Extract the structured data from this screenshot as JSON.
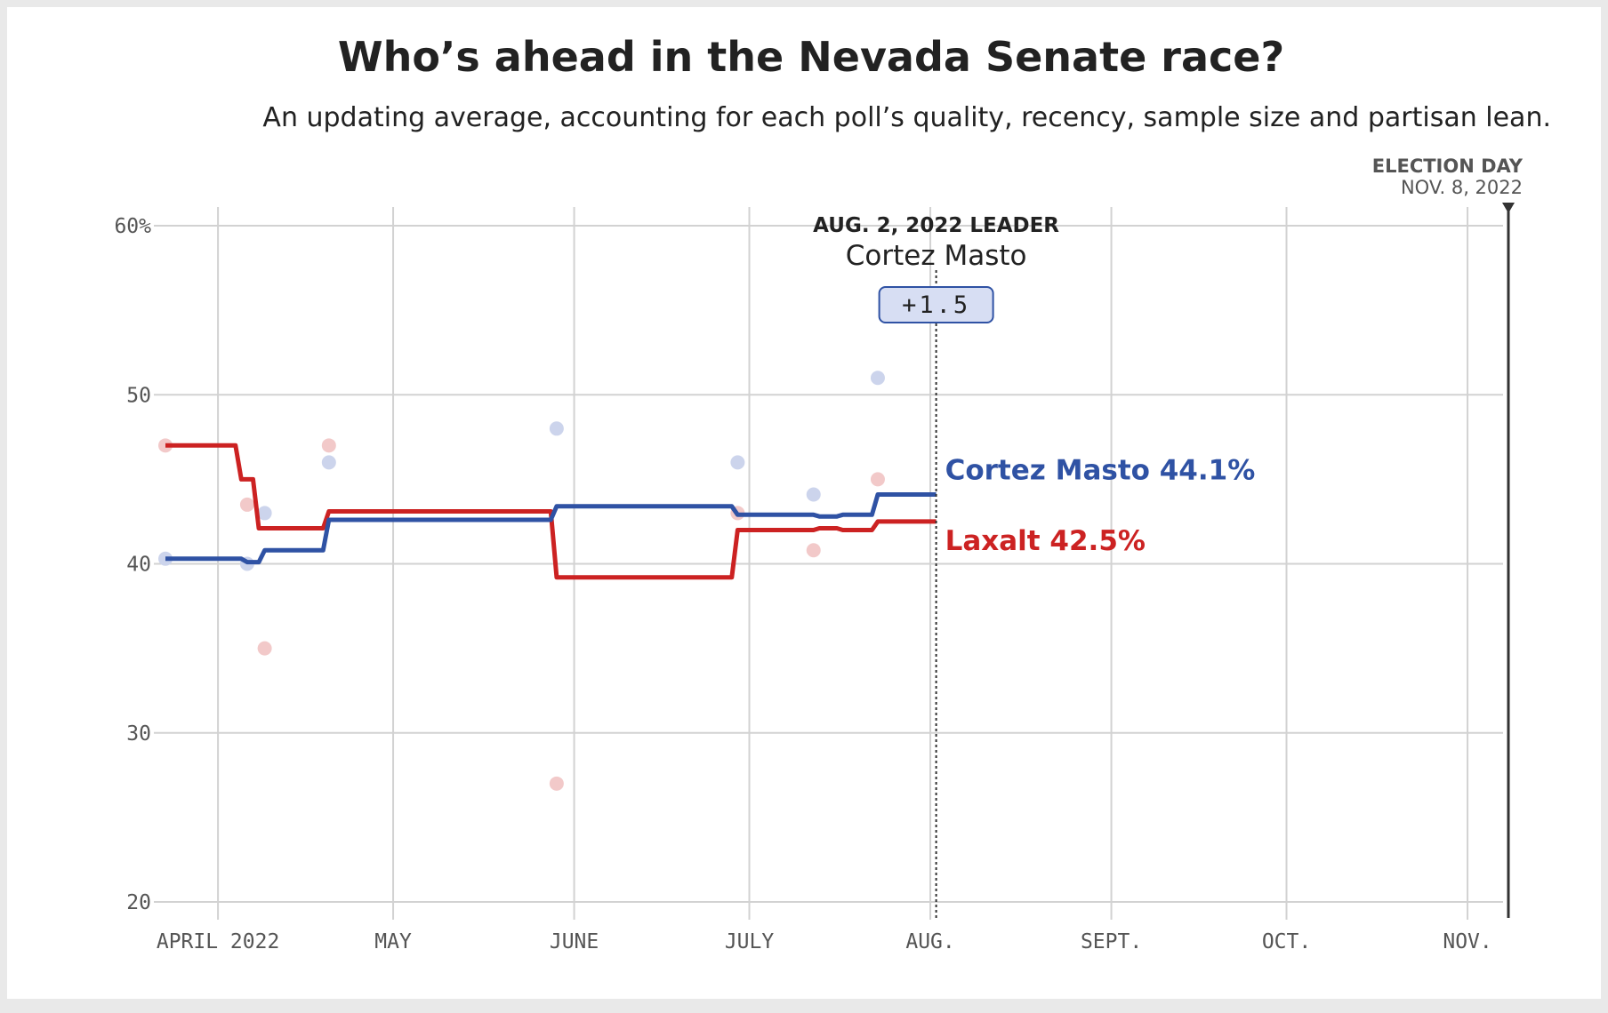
{
  "chart_data": {
    "type": "line",
    "title": "Who’s ahead in the Nevada Senate race?",
    "subtitle": "An updating average, accounting for each poll’s quality, recency, sample size and partisan lean.",
    "y_ticks": [
      "60%",
      "50",
      "40",
      "30",
      "20"
    ],
    "ylim": [
      20,
      60
    ],
    "xlim": [
      "2022-03-23",
      "2022-11-08"
    ],
    "x_ticks": [
      {
        "label": "APRIL 2022",
        "date": "2022-04-01"
      },
      {
        "label": "MAY",
        "date": "2022-05-01"
      },
      {
        "label": "JUNE",
        "date": "2022-06-01"
      },
      {
        "label": "JULY",
        "date": "2022-07-01"
      },
      {
        "label": "AUG.",
        "date": "2022-08-01"
      },
      {
        "label": "SEPT.",
        "date": "2022-09-01"
      },
      {
        "label": "OCT.",
        "date": "2022-10-01"
      },
      {
        "label": "NOV.",
        "date": "2022-11-01"
      }
    ],
    "grid": true,
    "election_day": {
      "label": "ELECTION DAY",
      "date_label": "NOV. 8, 2022",
      "date": "2022-11-08"
    },
    "leader_callout": {
      "heading": "AUG. 2, 2022 LEADER",
      "name": "Cortez Masto",
      "margin": "+1.5",
      "date": "2022-08-02"
    },
    "series": [
      {
        "name": "Cortez Masto",
        "end_label": "Cortez Masto 44.1%",
        "color": "#2f52a4",
        "points": [
          [
            "2022-03-23",
            40.3
          ],
          [
            "2022-04-05",
            40.3
          ],
          [
            "2022-04-06",
            40.1
          ],
          [
            "2022-04-08",
            40.1
          ],
          [
            "2022-04-09",
            40.8
          ],
          [
            "2022-04-19",
            40.8
          ],
          [
            "2022-04-20",
            42.6
          ],
          [
            "2022-05-28",
            42.6
          ],
          [
            "2022-05-29",
            43.4
          ],
          [
            "2022-06-28",
            43.4
          ],
          [
            "2022-06-29",
            42.9
          ],
          [
            "2022-07-12",
            42.9
          ],
          [
            "2022-07-13",
            42.8
          ],
          [
            "2022-07-16",
            42.8
          ],
          [
            "2022-07-17",
            42.9
          ],
          [
            "2022-07-22",
            42.9
          ],
          [
            "2022-07-23",
            44.1
          ],
          [
            "2022-08-02",
            44.1
          ]
        ]
      },
      {
        "name": "Laxalt",
        "end_label": "Laxalt 42.5%",
        "color": "#cc2222",
        "points": [
          [
            "2022-03-23",
            47.0
          ],
          [
            "2022-04-04",
            47.0
          ],
          [
            "2022-04-05",
            45.0
          ],
          [
            "2022-04-07",
            45.0
          ],
          [
            "2022-04-08",
            42.1
          ],
          [
            "2022-04-19",
            42.1
          ],
          [
            "2022-04-20",
            43.1
          ],
          [
            "2022-05-28",
            43.1
          ],
          [
            "2022-05-29",
            39.2
          ],
          [
            "2022-06-28",
            39.2
          ],
          [
            "2022-06-29",
            42.0
          ],
          [
            "2022-07-12",
            42.0
          ],
          [
            "2022-07-13",
            42.1
          ],
          [
            "2022-07-16",
            42.1
          ],
          [
            "2022-07-17",
            42.0
          ],
          [
            "2022-07-22",
            42.0
          ],
          [
            "2022-07-23",
            42.5
          ],
          [
            "2022-08-02",
            42.5
          ]
        ]
      }
    ],
    "polls": [
      {
        "series": "Cortez Masto",
        "date": "2022-03-23",
        "value": 40.3
      },
      {
        "series": "Cortez Masto",
        "date": "2022-04-06",
        "value": 40.0
      },
      {
        "series": "Cortez Masto",
        "date": "2022-04-09",
        "value": 43.0
      },
      {
        "series": "Cortez Masto",
        "date": "2022-04-20",
        "value": 46.0
      },
      {
        "series": "Cortez Masto",
        "date": "2022-05-29",
        "value": 48.0
      },
      {
        "series": "Cortez Masto",
        "date": "2022-06-29",
        "value": 46.0
      },
      {
        "series": "Cortez Masto",
        "date": "2022-07-12",
        "value": 44.1
      },
      {
        "series": "Cortez Masto",
        "date": "2022-07-23",
        "value": 51.0
      },
      {
        "series": "Laxalt",
        "date": "2022-03-23",
        "value": 47.0
      },
      {
        "series": "Laxalt",
        "date": "2022-04-06",
        "value": 43.5
      },
      {
        "series": "Laxalt",
        "date": "2022-04-09",
        "value": 35.0
      },
      {
        "series": "Laxalt",
        "date": "2022-04-20",
        "value": 47.0
      },
      {
        "series": "Laxalt",
        "date": "2022-05-29",
        "value": 27.0
      },
      {
        "series": "Laxalt",
        "date": "2022-06-29",
        "value": 43.0
      },
      {
        "series": "Laxalt",
        "date": "2022-07-12",
        "value": 40.8
      },
      {
        "series": "Laxalt",
        "date": "2022-07-23",
        "value": 45.0
      }
    ]
  }
}
